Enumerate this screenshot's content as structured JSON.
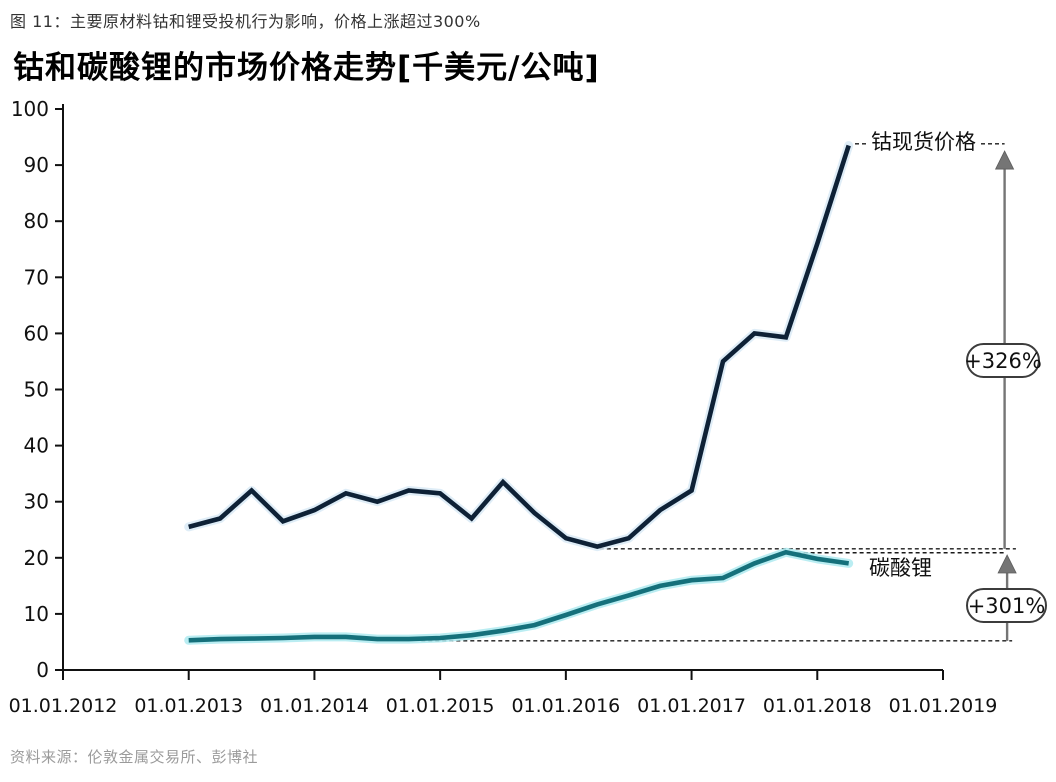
{
  "figure": {
    "caption": "图 11：主要原材料钴和锂受投机行为影响，价格上涨超过300%",
    "title": "钴和碳酸锂的市场价格走势[千美元/公吨]",
    "source": "资料来源：伦敦金属交易所、彭博社"
  },
  "chart_data": {
    "type": "line",
    "title": "钴和碳酸锂的市场价格走势",
    "unit_label": "千美元/公吨",
    "xlabel": "",
    "ylabel": "",
    "xlim": [
      2012,
      2019
    ],
    "ylim": [
      0,
      100
    ],
    "grid": false,
    "y_ticks": [
      0,
      10,
      20,
      30,
      40,
      50,
      60,
      70,
      80,
      90,
      100
    ],
    "x_tick_years": [
      2012,
      2013,
      2014,
      2015,
      2016,
      2017,
      2018,
      2019
    ],
    "x_tick_labels": [
      "01.01.2012",
      "01.01.2013",
      "01.01.2014",
      "01.01.2015",
      "01.01.2016",
      "01.01.2017",
      "01.01.2018",
      "01.01.2019"
    ],
    "series": [
      {
        "name": "钴现货价格",
        "color": "#0e2136",
        "halo_color": "#d9eaf6",
        "x": [
          2013.0,
          2013.25,
          2013.5,
          2013.75,
          2014.0,
          2014.25,
          2014.5,
          2014.75,
          2015.0,
          2015.25,
          2015.5,
          2015.75,
          2016.0,
          2016.25,
          2016.5,
          2016.75,
          2017.0,
          2017.25,
          2017.5,
          2017.75,
          2018.0,
          2018.25
        ],
        "values": [
          25.5,
          27.0,
          32.0,
          26.5,
          28.5,
          31.5,
          30.0,
          32.0,
          31.5,
          27.0,
          33.5,
          28.0,
          23.5,
          22.0,
          23.5,
          28.5,
          32.0,
          55.0,
          60.0,
          59.3,
          76.0,
          93.5
        ]
      },
      {
        "name": "碳酸锂",
        "color": "#15707b",
        "halo_color": "#aeeaf0",
        "x": [
          2013.0,
          2013.25,
          2013.5,
          2013.75,
          2014.0,
          2014.25,
          2014.5,
          2014.75,
          2015.0,
          2015.25,
          2015.5,
          2015.75,
          2016.0,
          2016.25,
          2016.5,
          2016.75,
          2017.0,
          2017.25,
          2017.5,
          2017.75,
          2018.0,
          2018.25
        ],
        "values": [
          5.3,
          5.5,
          5.6,
          5.7,
          5.9,
          5.9,
          5.5,
          5.5,
          5.7,
          6.2,
          7.0,
          8.0,
          9.8,
          11.7,
          13.3,
          15.0,
          16.0,
          16.4,
          19.0,
          21.0,
          19.8,
          19.0
        ]
      }
    ],
    "reference_lines": [
      {
        "id": "cobalt-low-baseline",
        "value": 21.6,
        "from_year": 2016.27,
        "to_year": 2019.58
      },
      {
        "id": "lithium-peak-line",
        "value": 20.9,
        "from_year": 2017.78,
        "to_year": 2019.49
      },
      {
        "id": "lithium-low-baseline",
        "value": 5.2,
        "from_year": 2014.85,
        "to_year": 2019.55
      },
      {
        "id": "cobalt-peak-label-line",
        "value": 93.8,
        "from_year": 2018.3,
        "to_year": 2019.49
      }
    ],
    "callouts": [
      {
        "series": "钴现货价格",
        "label": "+326%",
        "arrow_x_year": 2019.49,
        "from_value": 21.6,
        "to_value": 92.5
      },
      {
        "series": "碳酸锂",
        "label": "+301%",
        "arrow_x_year": 2019.51,
        "from_value": 5.2,
        "to_value": 20.5
      }
    ],
    "legend_position": "inline-labels"
  },
  "annotations": {
    "cobalt_label": "钴现货价格",
    "lithium_label": "碳酸锂",
    "cobalt_change": "+326%",
    "lithium_change": "+301%"
  },
  "colors": {
    "cobalt_line": "#0e2136",
    "lithium_line": "#15707b",
    "arrow_gray": "#757575",
    "axis": "#111111",
    "dashed": "#1a1a1a"
  }
}
